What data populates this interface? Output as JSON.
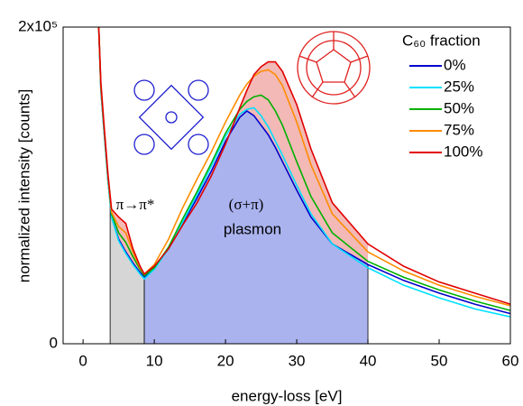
{
  "chart_data": {
    "type": "line",
    "x_label": "energy-loss [eV]",
    "y_label": "normalized intensity [counts]",
    "xlim": [
      -2.8,
      60
    ],
    "xticks": [
      0,
      10,
      20,
      30,
      40,
      50,
      60
    ],
    "ylim": [
      0,
      200000
    ],
    "yticks": [
      0,
      {
        "value": 200000,
        "label": "2x10⁵"
      }
    ],
    "legend_title": "C₆₀ fraction",
    "legend": "upper right",
    "annotations": [
      "π→π*",
      "(σ+π)",
      "plasmon"
    ],
    "shaded_regions": [
      {
        "from": 3.8,
        "to": 8.6,
        "color": "#d6d6d6"
      },
      {
        "from": 8.6,
        "to": 40,
        "color": "#aab3ee"
      }
    ],
    "fill_between": {
      "from": 3.8,
      "to": 40,
      "color": "#f3b9b6"
    },
    "x": [
      2.2,
      2.5,
      3,
      3.5,
      4,
      5,
      6,
      7,
      8,
      8.6,
      10,
      12,
      14,
      16,
      18,
      20,
      22,
      23,
      24,
      25,
      26,
      27,
      28,
      30,
      32,
      35,
      40,
      45,
      50,
      55,
      60
    ],
    "series": [
      {
        "name": "0%",
        "color": "#0000cc",
        "values": [
          200000,
          160000,
          131000,
          103000,
          80000,
          66000,
          58000,
          51000,
          45000,
          42000,
          48000,
          60000,
          76000,
          92000,
          109000,
          128000,
          143000,
          147000,
          144000,
          138000,
          132000,
          124000,
          115000,
          97000,
          80000,
          63000,
          50000,
          40000,
          32000,
          25000,
          19000
        ]
      },
      {
        "name": "25%",
        "color": "#00e0ff",
        "values": [
          200000,
          160000,
          131000,
          103000,
          80000,
          65000,
          57000,
          50000,
          44000,
          41000,
          47000,
          60000,
          77000,
          94000,
          112000,
          131000,
          145000,
          148000,
          149000,
          144000,
          137000,
          128000,
          119000,
          100000,
          82000,
          63000,
          48000,
          37000,
          29000,
          22000,
          17000
        ]
      },
      {
        "name": "50%",
        "color": "#00b000",
        "values": [
          200000,
          162000,
          133000,
          105000,
          82000,
          70000,
          64000,
          55000,
          47000,
          43000,
          48000,
          61000,
          79000,
          96000,
          114000,
          133000,
          148000,
          153000,
          156000,
          157000,
          154000,
          147000,
          138000,
          115000,
          93000,
          70000,
          52000,
          42000,
          34000,
          27000,
          21000
        ]
      },
      {
        "name": "75%",
        "color": "#ff8c00",
        "values": [
          200000,
          163000,
          134000,
          106000,
          83000,
          74000,
          70000,
          58000,
          48000,
          44000,
          50000,
          66000,
          86000,
          104000,
          121000,
          140000,
          157000,
          164000,
          169000,
          172000,
          173000,
          170000,
          163000,
          140000,
          113000,
          82000,
          58000,
          46000,
          37000,
          30000,
          24000
        ]
      },
      {
        "name": "100%",
        "color": "#e00000",
        "values": [
          200000,
          165000,
          135000,
          107000,
          85000,
          80000,
          76000,
          60000,
          49000,
          44000,
          49000,
          60000,
          75000,
          89000,
          106000,
          126000,
          149000,
          160000,
          170000,
          175000,
          178000,
          178000,
          172000,
          151000,
          123000,
          89000,
          63000,
          49000,
          39000,
          32000,
          25000
        ]
      }
    ]
  }
}
